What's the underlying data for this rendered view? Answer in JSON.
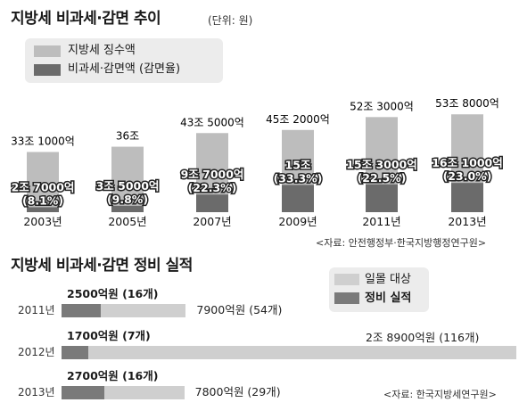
{
  "top_chart": {
    "title": "지방세 비과세·감면 추이",
    "unit": "(단위: 원)",
    "legend": {
      "collected": "지방세 징수액",
      "exempt": "비과세·감면액 (감면율)"
    },
    "source": "<자료: 안전행정부·한국지방행정연구원>"
  },
  "bottom_chart": {
    "title": "지방세 비과세·감면 정비 실적",
    "legend": {
      "target": "일몰 대상",
      "done": "정비 실적"
    },
    "source": "<자료: 한국지방세연구원>"
  },
  "chart_data": [
    {
      "type": "bar",
      "title": "지방세 비과세·감면 추이",
      "categories": [
        "2003년",
        "2005년",
        "2007년",
        "2009년",
        "2011년",
        "2013년"
      ],
      "series": [
        {
          "name": "지방세 징수액",
          "values": [
            33.1,
            36.0,
            43.5,
            45.2,
            52.3,
            53.8
          ],
          "labels": [
            "33조 1000억",
            "36조",
            "43조 5000억",
            "45조 2000억",
            "52조 3000억",
            "53조 8000억"
          ]
        },
        {
          "name": "비과세·감면액 (감면율)",
          "values": [
            2.7,
            3.5,
            9.7,
            15.0,
            15.3,
            16.1
          ],
          "labels": [
            "2조 7000억",
            "3조 5000억",
            "9조 7000억",
            "15조",
            "15조 3000억",
            "16조 1000억"
          ],
          "rates": [
            "(8.1%)",
            "(9.8%)",
            "(22.3%)",
            "(33.3%)",
            "(22.5%)",
            "(23.0%)"
          ]
        }
      ],
      "ylim": [
        0,
        60
      ],
      "colors": {
        "collected": "#bdbdbd",
        "exempt": "#6b6b6b"
      }
    },
    {
      "type": "bar",
      "orientation": "horizontal",
      "title": "지방세 비과세·감면 정비 실적",
      "categories": [
        "2011년",
        "2012년",
        "2013년"
      ],
      "series": [
        {
          "name": "일몰 대상",
          "values": [
            7900,
            28900,
            7800
          ],
          "labels": [
            "7900억원 (54개)",
            "2조 8900억원 (116개)",
            "7800억원 (29개)"
          ]
        },
        {
          "name": "정비 실적",
          "values": [
            2500,
            1700,
            2700
          ],
          "labels": [
            "2500억원 (16개)",
            "1700억원 (7개)",
            "2700억원 (16개)"
          ]
        }
      ],
      "colors": {
        "target": "#cfcfcf",
        "done": "#7a7a7a"
      }
    }
  ]
}
